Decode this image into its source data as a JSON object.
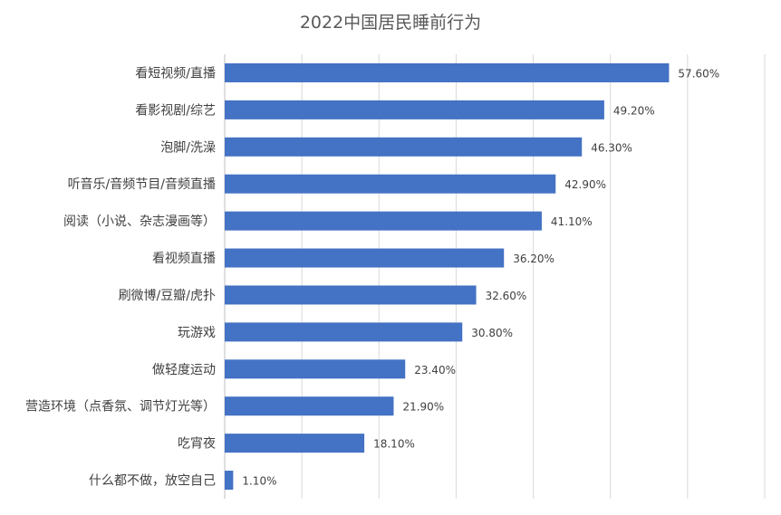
{
  "chart_data": {
    "type": "bar",
    "orientation": "horizontal",
    "title": "2022中国居民睡前行为",
    "categories": [
      "看短视频/直播",
      "看影视剧/综艺",
      "泡脚/洗澡",
      "听音乐/音频节目/音频直播",
      "阅读（小说、杂志漫画等）",
      "看视频直播",
      "刷微博/豆瓣/虎扑",
      "玩游戏",
      "做轻度运动",
      "营造环境（点香氛、调节灯光等）",
      "吃宵夜",
      "什么都不做，放空自己"
    ],
    "values": [
      57.6,
      49.2,
      46.3,
      42.9,
      41.1,
      36.2,
      32.6,
      30.8,
      23.4,
      21.9,
      18.1,
      1.1
    ],
    "value_labels": [
      "57.60%",
      "49.20%",
      "46.30%",
      "42.90%",
      "41.10%",
      "36.20%",
      "32.60%",
      "30.80%",
      "23.40%",
      "21.90%",
      "18.10%",
      "1.10%"
    ],
    "xlim": [
      0,
      70
    ],
    "grid": true,
    "bar_color": "#4472c4"
  }
}
